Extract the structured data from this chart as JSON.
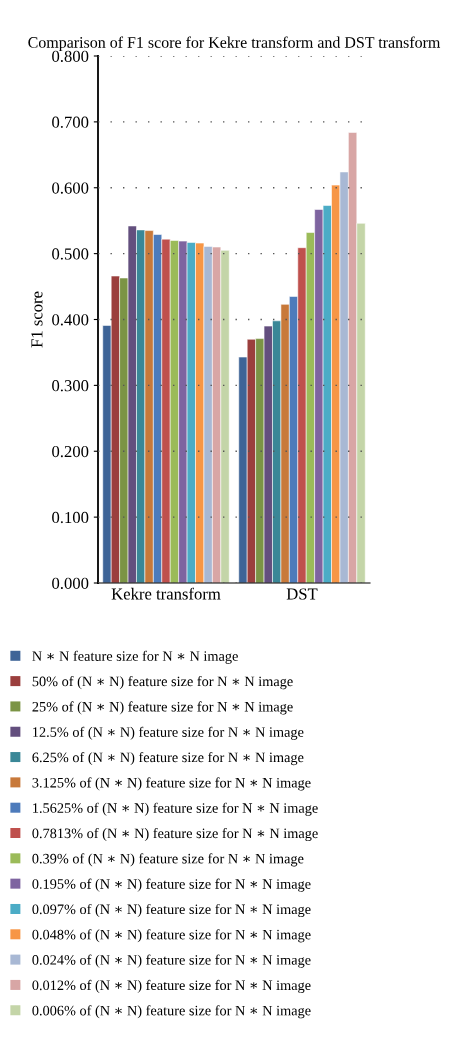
{
  "chart_data": {
    "type": "bar",
    "title": "Comparison of F1 score for Kekre transform and DST transform",
    "ylabel": "F1 score",
    "categories": [
      "Kekre transform",
      "DST"
    ],
    "series": [
      {
        "name": "N ∗ N feature size for N ∗ N image",
        "color": "#3e6497",
        "values": [
          0.391,
          0.343
        ]
      },
      {
        "name": "50% of (N ∗ N) feature size for N ∗ N image",
        "color": "#9b3f3d",
        "values": [
          0.466,
          0.37
        ]
      },
      {
        "name": "25% of (N ∗ N) feature size for N ∗ N image",
        "color": "#7b9445",
        "values": [
          0.463,
          0.371
        ]
      },
      {
        "name": "12.5% of (N ∗ N) feature size for N ∗ N image",
        "color": "#634f7e",
        "values": [
          0.542,
          0.39
        ]
      },
      {
        "name": "6.25% of (N ∗ N) feature size for N ∗ N image",
        "color": "#3a8797",
        "values": [
          0.536,
          0.398
        ]
      },
      {
        "name": "3.125% of (N ∗ N) feature size for N ∗ N image",
        "color": "#c8793a",
        "values": [
          0.535,
          0.423
        ]
      },
      {
        "name": "1.5625% of (N ∗ N) feature size for N ∗ N image",
        "color": "#4d7bbb",
        "values": [
          0.529,
          0.435
        ]
      },
      {
        "name": "0.7813% of (N ∗ N) feature size for N ∗ N image",
        "color": "#bf504d",
        "values": [
          0.522,
          0.509
        ]
      },
      {
        "name": "0.39% of (N ∗ N) feature size for N ∗ N image",
        "color": "#9bbb59",
        "values": [
          0.52,
          0.532
        ]
      },
      {
        "name": "0.195% of (N ∗ N) feature size for N ∗ N image",
        "color": "#7e64a0",
        "values": [
          0.519,
          0.567
        ]
      },
      {
        "name": "0.097% of (N ∗ N) feature size for N ∗ N image",
        "color": "#4bacc6",
        "values": [
          0.517,
          0.573
        ]
      },
      {
        "name": "0.048% of (N ∗ N) feature size for N ∗ N image",
        "color": "#f79646",
        "values": [
          0.516,
          0.604
        ]
      },
      {
        "name": "0.024% of (N ∗ N) feature size for N ∗ N image",
        "color": "#a8b8d4",
        "values": [
          0.511,
          0.624
        ]
      },
      {
        "name": "0.012% of (N ∗ N) feature size for N ∗ N image",
        "color": "#d8a6a5",
        "values": [
          0.51,
          0.684
        ]
      },
      {
        "name": "0.006% of (N ∗ N) feature size for N ∗ N image",
        "color": "#c4d5a8",
        "values": [
          0.505,
          0.546
        ]
      }
    ],
    "ylim": [
      0,
      0.8
    ],
    "yticks": [
      {
        "value": 0,
        "label": "0.000"
      },
      {
        "value": 0.1,
        "label": "0.100"
      },
      {
        "value": 0.2,
        "label": "0.200"
      },
      {
        "value": 0.3,
        "label": "0.300"
      },
      {
        "value": 0.4,
        "label": "0.400"
      },
      {
        "value": 0.5,
        "label": "0.500"
      },
      {
        "value": 0.6,
        "label": "0.600"
      },
      {
        "value": 0.7,
        "label": "0.700"
      },
      {
        "value": 0.8,
        "label": "0.800"
      }
    ],
    "grid": "y",
    "legend": "bottom"
  }
}
